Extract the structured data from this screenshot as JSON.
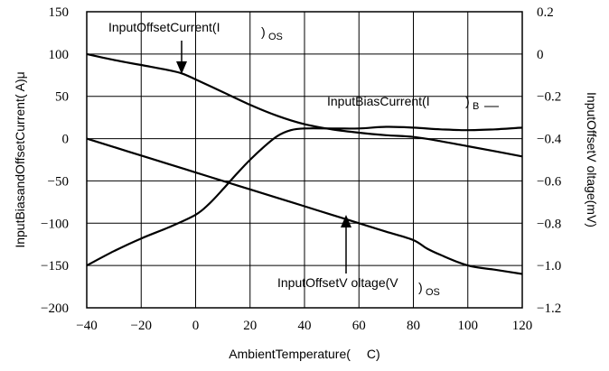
{
  "chart_data": {
    "type": "line",
    "xlabel_parts": [
      "AmbientT",
      "emperature(",
      "C)"
    ],
    "ylabel_left": "InputBiasandOffsetCurrent(     A)μ",
    "ylabel_right": "InputOffsetV  oltage(mV)",
    "xlim": [
      -40,
      120
    ],
    "ylim_left": [
      -200,
      150
    ],
    "ylim_right": [
      -1.2,
      0.2
    ],
    "x_ticks": [
      "−40",
      "−20",
      "0",
      "20",
      "40",
      "60",
      "80",
      "100",
      "120"
    ],
    "y_left_ticks": [
      "150",
      "100",
      "50",
      "0",
      "−50",
      "−100",
      "−150",
      "−200"
    ],
    "y_right_ticks": [
      "0.2",
      "0",
      "−0.2",
      "−0.4",
      "−0.6",
      "−0.8",
      "−1.0",
      "−1.2"
    ],
    "grid": true,
    "annotations": {
      "offset_current": {
        "text": "InputOffsetCurrent(I",
        "suffix": ")",
        "sub": "OS"
      },
      "bias_current": {
        "text": "InputBiasCurrent(I",
        "suffix": ")",
        "sub": "B"
      },
      "offset_voltage": {
        "text": "InputOffsetV  oltage(V",
        "suffix": ")",
        "sub": "OS"
      }
    },
    "series": [
      {
        "axis": "left",
        "x": [
          -40,
          -30,
          -20,
          -10,
          -5,
          0,
          10,
          20,
          30,
          40,
          50,
          60,
          70,
          80,
          90,
          100,
          110,
          120
        ],
        "y": [
          100,
          93,
          87,
          81,
          77,
          70,
          55,
          40,
          27,
          17,
          11,
          7,
          4,
          2,
          -3,
          -9,
          -15,
          -21
        ]
      },
      {
        "axis": "left",
        "x": [
          -40,
          -30,
          -20,
          -10,
          0,
          5,
          10,
          15,
          20,
          25,
          30,
          35,
          40,
          50,
          60,
          70,
          80,
          90,
          100,
          110,
          120
        ],
        "y": [
          -150,
          -133,
          -118,
          -105,
          -90,
          -77,
          -60,
          -42,
          -25,
          -10,
          3,
          10,
          12,
          12,
          12,
          14,
          13,
          11,
          10,
          11,
          13
        ]
      },
      {
        "axis": "right",
        "x": [
          -40,
          -30,
          -20,
          -10,
          0,
          10,
          20,
          30,
          40,
          50,
          60,
          70,
          80,
          85,
          90,
          100,
          110,
          120
        ],
        "y": [
          -0.4,
          -0.44,
          -0.48,
          -0.52,
          -0.56,
          -0.6,
          -0.64,
          -0.68,
          -0.72,
          -0.76,
          -0.8,
          -0.84,
          -0.88,
          -0.92,
          -0.95,
          -1.0,
          -1.02,
          -1.04
        ]
      }
    ]
  }
}
